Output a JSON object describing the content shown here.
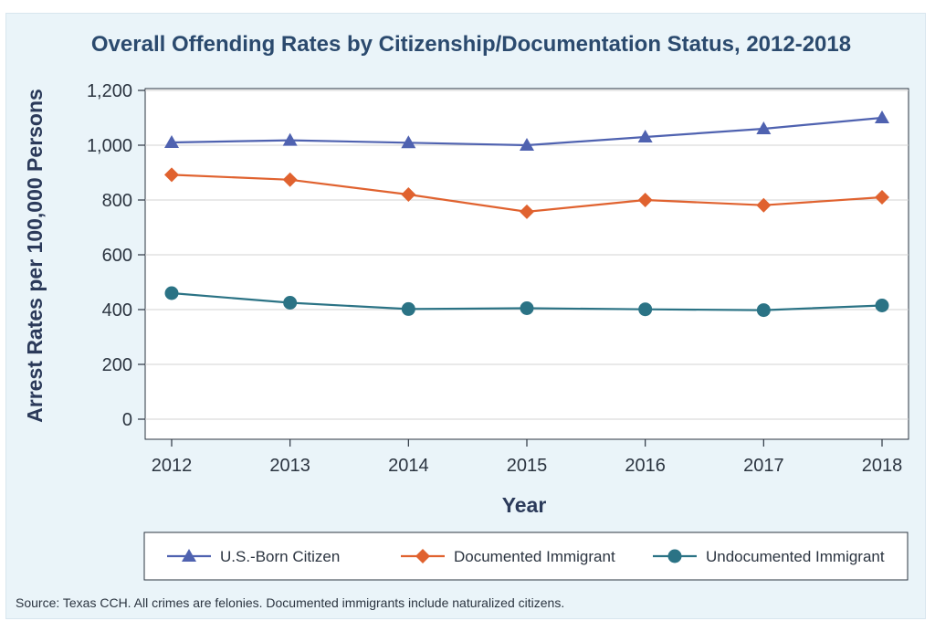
{
  "chart_data": {
    "type": "line",
    "title": "Overall Offending Rates by Citizenship/Documentation Status, 2012-2018",
    "xlabel": "Year",
    "ylabel": "Arrest Rates per 100,000 Persons",
    "categories": [
      "2012",
      "2013",
      "2014",
      "2015",
      "2016",
      "2017",
      "2018"
    ],
    "ylim": [
      0,
      1200
    ],
    "yticks": [
      0,
      200,
      400,
      600,
      800,
      1000,
      1200
    ],
    "ytick_labels": [
      "0",
      "200",
      "400",
      "600",
      "800",
      "1,000",
      "1,200"
    ],
    "grid": "horizontal",
    "legend_position": "bottom",
    "series": [
      {
        "name": "U.S.-Born Citizen",
        "marker": "triangle",
        "color": "#4f62b0",
        "values": [
          1010,
          1018,
          1009,
          1000,
          1030,
          1060,
          1100
        ]
      },
      {
        "name": "Documented Immigrant",
        "marker": "diamond",
        "color": "#e0622f",
        "values": [
          892,
          874,
          820,
          757,
          800,
          781,
          810
        ]
      },
      {
        "name": "Undocumented Immigrant",
        "marker": "circle",
        "color": "#2b7385",
        "values": [
          460,
          425,
          402,
          405,
          401,
          398,
          415
        ]
      }
    ],
    "source_note": "Source: Texas CCH. All crimes are felonies. Documented immigrants include naturalized citizens."
  },
  "colors": {
    "title": "#2b4a6e",
    "axis_text": "#2b3440",
    "plot_background": "#ffffff",
    "frame_background": "#eaf4f9",
    "grid": "#d3d3d3"
  }
}
